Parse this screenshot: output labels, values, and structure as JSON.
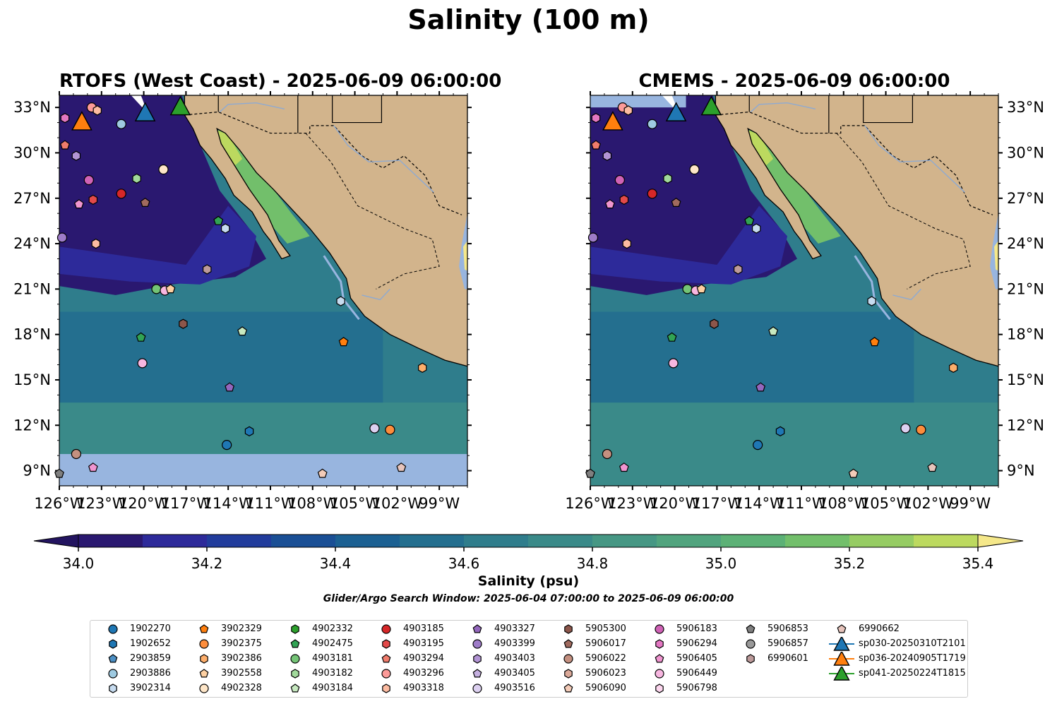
{
  "title": "Salinity (100 m)",
  "panels": [
    {
      "title": "RTOFS (West Coast) - 2025-06-09 06:00:00"
    },
    {
      "title": "CMEMS - 2025-06-09 06:00:00"
    }
  ],
  "axes": {
    "lat_ticks": [
      "33°N",
      "30°N",
      "27°N",
      "24°N",
      "21°N",
      "18°N",
      "15°N",
      "12°N",
      "9°N"
    ],
    "lon_ticks": [
      "126°W",
      "123°W",
      "120°W",
      "117°W",
      "114°W",
      "111°W",
      "108°W",
      "105°W",
      "102°W",
      "99°W"
    ],
    "lat_range": [
      8,
      33.8
    ],
    "lon_range": [
      -126,
      -97
    ]
  },
  "colorbar": {
    "label": "Salinity (psu)",
    "ticks": [
      "34.0",
      "34.2",
      "34.4",
      "34.6",
      "34.8",
      "35.0",
      "35.2",
      "35.4"
    ],
    "range": [
      34.0,
      35.4
    ],
    "step": 0.1,
    "colors": [
      "#2a1870",
      "#2d2a9a",
      "#213c9c",
      "#1a4f95",
      "#1b6092",
      "#246f8f",
      "#2f7d8c",
      "#3a8a89",
      "#469784",
      "#51a47e",
      "#5cb176",
      "#72bf6b",
      "#96cc63",
      "#bcd95f",
      "#d9e06a"
    ],
    "extend_low": "#231460",
    "extend_high": "#f5e88a"
  },
  "window_note": "Glider/Argo Search Window: 2025-06-04 07:00:00 to 2025-06-09 06:00:00",
  "legend": [
    {
      "label": "1902270",
      "marker": "circle",
      "color": "#1f77b4"
    },
    {
      "label": "1902652",
      "marker": "hexagon",
      "color": "#1f77b4"
    },
    {
      "label": "2903859",
      "marker": "pentagon",
      "color": "#4c8fc4"
    },
    {
      "label": "2903886",
      "marker": "circle",
      "color": "#9ecae1"
    },
    {
      "label": "3902314",
      "marker": "hexagon",
      "color": "#c6dbef"
    },
    {
      "label": "3902329",
      "marker": "pentagon",
      "color": "#ff7f0e"
    },
    {
      "label": "3902375",
      "marker": "circle",
      "color": "#fd8d3c"
    },
    {
      "label": "3902386",
      "marker": "hexagon",
      "color": "#fdae6b"
    },
    {
      "label": "3902558",
      "marker": "pentagon",
      "color": "#fdd0a2"
    },
    {
      "label": "4902328",
      "marker": "circle",
      "color": "#fee6c8"
    },
    {
      "label": "4902332",
      "marker": "hexagon",
      "color": "#2ca02c"
    },
    {
      "label": "4902475",
      "marker": "pentagon",
      "color": "#31a354"
    },
    {
      "label": "4903181",
      "marker": "circle",
      "color": "#74c476"
    },
    {
      "label": "4903182",
      "marker": "hexagon",
      "color": "#a1d99b"
    },
    {
      "label": "4903184",
      "marker": "pentagon",
      "color": "#c7e9c0"
    },
    {
      "label": "4903185",
      "marker": "circle",
      "color": "#d62728"
    },
    {
      "label": "4903195",
      "marker": "hexagon",
      "color": "#e34a4a"
    },
    {
      "label": "4903294",
      "marker": "pentagon",
      "color": "#f07c6c"
    },
    {
      "label": "4903296",
      "marker": "circle",
      "color": "#fc9a98"
    },
    {
      "label": "4903318",
      "marker": "hexagon",
      "color": "#fcbba1"
    },
    {
      "label": "4903327",
      "marker": "pentagon",
      "color": "#9467bd"
    },
    {
      "label": "4903399",
      "marker": "circle",
      "color": "#9e7cc8"
    },
    {
      "label": "4903403",
      "marker": "hexagon",
      "color": "#b294d4"
    },
    {
      "label": "4903405",
      "marker": "pentagon",
      "color": "#c5b0e0"
    },
    {
      "label": "4903516",
      "marker": "circle",
      "color": "#dcd0f0"
    },
    {
      "label": "5905300",
      "marker": "hexagon",
      "color": "#8c564b"
    },
    {
      "label": "5906017",
      "marker": "pentagon",
      "color": "#a06a5e"
    },
    {
      "label": "5906022",
      "marker": "circle",
      "color": "#c49080"
    },
    {
      "label": "5906023",
      "marker": "hexagon",
      "color": "#dba999"
    },
    {
      "label": "5906090",
      "marker": "pentagon",
      "color": "#f3cbb8"
    },
    {
      "label": "5906183",
      "marker": "circle",
      "color": "#d062b6"
    },
    {
      "label": "5906294",
      "marker": "hexagon",
      "color": "#e377c2"
    },
    {
      "label": "5906405",
      "marker": "pentagon",
      "color": "#f095d0"
    },
    {
      "label": "5906449",
      "marker": "circle",
      "color": "#f7b6e0"
    },
    {
      "label": "5906798",
      "marker": "hexagon",
      "color": "#fcd6ee"
    },
    {
      "label": "5906853",
      "marker": "pentagon",
      "color": "#7f7f7f"
    },
    {
      "label": "5906857",
      "marker": "circle",
      "color": "#999999"
    },
    {
      "label": "6990601",
      "marker": "hexagon",
      "color": "#bc9a9a"
    },
    {
      "label": "6990662",
      "marker": "pentagon",
      "color": "#e7c4bc"
    },
    {
      "label": "sp030-20250310T2101",
      "marker": "triangle",
      "color": "#1f77b4"
    },
    {
      "label": "sp036-20240905T1719",
      "marker": "triangle",
      "color": "#ff7f0e"
    },
    {
      "label": "sp041-20250224T1815",
      "marker": "triangle",
      "color": "#2ca02c"
    }
  ],
  "chart_data": {
    "type": "scatter",
    "title": "Salinity (100 m)",
    "xlabel": "",
    "ylabel": "",
    "xlim": [
      -126,
      -97
    ],
    "ylim": [
      8,
      33.8
    ],
    "points": [
      {
        "id": "sp041-20250224T1815",
        "lon": -117.4,
        "lat": 33.0
      },
      {
        "id": "sp030-20250310T2101",
        "lon": -119.9,
        "lat": 32.6
      },
      {
        "id": "sp036-20240905T1719",
        "lon": -124.4,
        "lat": 32.0
      },
      {
        "id": "4903296",
        "lon": -123.7,
        "lat": 33.0
      },
      {
        "id": "4903318",
        "lon": -123.3,
        "lat": 32.8
      },
      {
        "id": "5906294",
        "lon": -125.6,
        "lat": 32.3
      },
      {
        "id": "2903886",
        "lon": -121.6,
        "lat": 31.9
      },
      {
        "id": "4903294",
        "lon": -125.6,
        "lat": 30.5
      },
      {
        "id": "4903403",
        "lon": -124.8,
        "lat": 29.8
      },
      {
        "id": "4902328",
        "lon": -118.6,
        "lat": 28.9
      },
      {
        "id": "5906183",
        "lon": -123.9,
        "lat": 28.2
      },
      {
        "id": "4903182",
        "lon": -120.5,
        "lat": 28.3
      },
      {
        "id": "4903185",
        "lon": -121.6,
        "lat": 27.3
      },
      {
        "id": "4903195",
        "lon": -123.6,
        "lat": 26.9
      },
      {
        "id": "5906017",
        "lon": -119.9,
        "lat": 26.7
      },
      {
        "id": "5906405",
        "lon": -124.6,
        "lat": 26.6
      },
      {
        "id": "4902475",
        "lon": -114.7,
        "lat": 25.5
      },
      {
        "id": "3902314",
        "lon": -114.2,
        "lat": 25.0
      },
      {
        "id": "4903399",
        "lon": -125.8,
        "lat": 24.4
      },
      {
        "id": "4903318",
        "lon": -123.4,
        "lat": 24.0
      },
      {
        "id": "6990601",
        "lon": -115.5,
        "lat": 22.3
      },
      {
        "id": "4903181",
        "lon": -119.1,
        "lat": 21.0
      },
      {
        "id": "5906449",
        "lon": -118.5,
        "lat": 20.9
      },
      {
        "id": "3902558",
        "lon": -118.1,
        "lat": 21.0
      },
      {
        "id": "3902314",
        "lon": -106.0,
        "lat": 20.2
      },
      {
        "id": "5905300",
        "lon": -117.2,
        "lat": 18.7
      },
      {
        "id": "4903184",
        "lon": -113.0,
        "lat": 18.2
      },
      {
        "id": "4902475",
        "lon": -120.2,
        "lat": 17.8
      },
      {
        "id": "3902329",
        "lon": -105.8,
        "lat": 17.5
      },
      {
        "id": "5906449",
        "lon": -120.1,
        "lat": 16.1
      },
      {
        "id": "3902386",
        "lon": -100.2,
        "lat": 15.8
      },
      {
        "id": "4903327",
        "lon": -113.9,
        "lat": 14.5
      },
      {
        "id": "1902652",
        "lon": -112.5,
        "lat": 11.6
      },
      {
        "id": "4903516",
        "lon": -103.6,
        "lat": 11.8
      },
      {
        "id": "3902375",
        "lon": -102.5,
        "lat": 11.7
      },
      {
        "id": "1902270",
        "lon": -114.1,
        "lat": 10.7
      },
      {
        "id": "5906022",
        "lon": -124.8,
        "lat": 10.1
      },
      {
        "id": "5906405",
        "lon": -123.6,
        "lat": 9.2
      },
      {
        "id": "5906090",
        "lon": -107.3,
        "lat": 8.8
      },
      {
        "id": "6990662",
        "lon": -101.7,
        "lat": 9.2
      },
      {
        "id": "5906853",
        "lon": -126.0,
        "lat": 8.8
      }
    ]
  }
}
